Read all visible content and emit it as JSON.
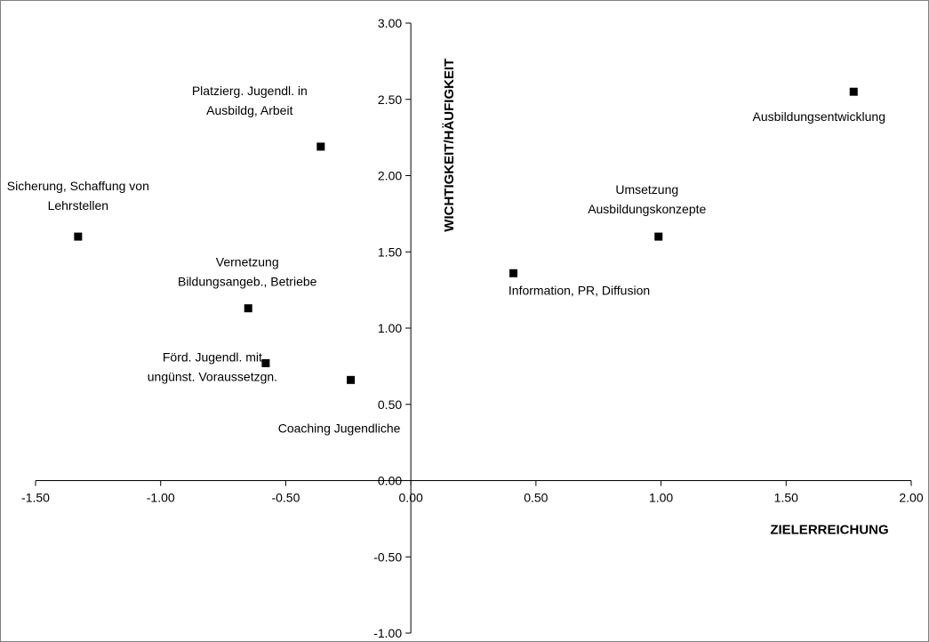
{
  "chart_data": {
    "type": "scatter",
    "xlabel": "ZIELERREICHUNG",
    "ylabel": "WICHTIGKEIT/HÄUFIGKEIT",
    "xlim": [
      -1.5,
      2.0
    ],
    "ylim": [
      -1.0,
      3.0
    ],
    "xticks": [
      "-1.50",
      "-1.00",
      "-0.50",
      "0.00",
      "0.50",
      "1.00",
      "1.50",
      "2.00"
    ],
    "yticks": [
      "-1.00",
      "-0.50",
      "0.00",
      "0.50",
      "1.00",
      "1.50",
      "2.00",
      "2.50",
      "3.00"
    ],
    "grid": false,
    "marker_color": "#000000",
    "points": [
      {
        "label_lines": [
          "Platzierg. Jugendl. in",
          "Ausbildg, Arbeit"
        ],
        "x": -0.36,
        "y": 2.19
      },
      {
        "label_lines": [
          "Sicherung, Schaffung von",
          "Lehrstellen"
        ],
        "x": -1.33,
        "y": 1.6
      },
      {
        "label_lines": [
          "Vernetzung",
          "Bildungsangeb., Betriebe"
        ],
        "x": -0.65,
        "y": 1.13
      },
      {
        "label_lines": [
          "Förd. Jugendl. mit",
          "ungünst. Voraussetzgn."
        ],
        "x": -0.58,
        "y": 0.77
      },
      {
        "label_lines": [
          "Coaching Jugendliche"
        ],
        "x": -0.24,
        "y": 0.66
      },
      {
        "label_lines": [
          "Information, PR, Diffusion"
        ],
        "x": 0.41,
        "y": 1.36
      },
      {
        "label_lines": [
          "Umsetzung",
          "Ausbildungskonzepte"
        ],
        "x": 0.99,
        "y": 1.6
      },
      {
        "label_lines": [
          "Ausbildungsentwicklung"
        ],
        "x": 1.77,
        "y": 2.55
      }
    ]
  }
}
